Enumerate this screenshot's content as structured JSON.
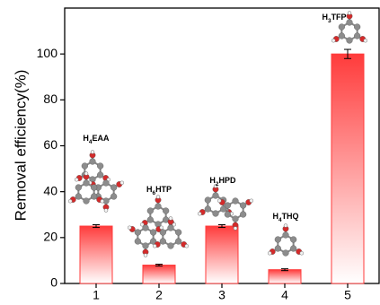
{
  "chart_data": {
    "type": "bar",
    "y_label": "Removal efficiency(%)",
    "categories": [
      "1",
      "2",
      "3",
      "4",
      "5"
    ],
    "values": [
      25,
      8,
      25,
      6,
      100
    ],
    "errors": [
      0.6,
      0.4,
      0.6,
      0.4,
      2
    ],
    "molecule_labels": [
      {
        "prefix": "H",
        "sub": "4",
        "suffix": "EAA"
      },
      {
        "prefix": "H",
        "sub": "6",
        "suffix": "HTP"
      },
      {
        "prefix": "H",
        "sub": "2",
        "suffix": "HPD"
      },
      {
        "prefix": "H",
        "sub": "4",
        "suffix": "THQ"
      },
      {
        "prefix": "H",
        "sub": "3",
        "suffix": "TFP"
      }
    ],
    "color": "#ff3b3b",
    "ylim": [
      0,
      120
    ],
    "yticks": [
      0,
      20,
      40,
      60,
      80,
      100
    ]
  }
}
